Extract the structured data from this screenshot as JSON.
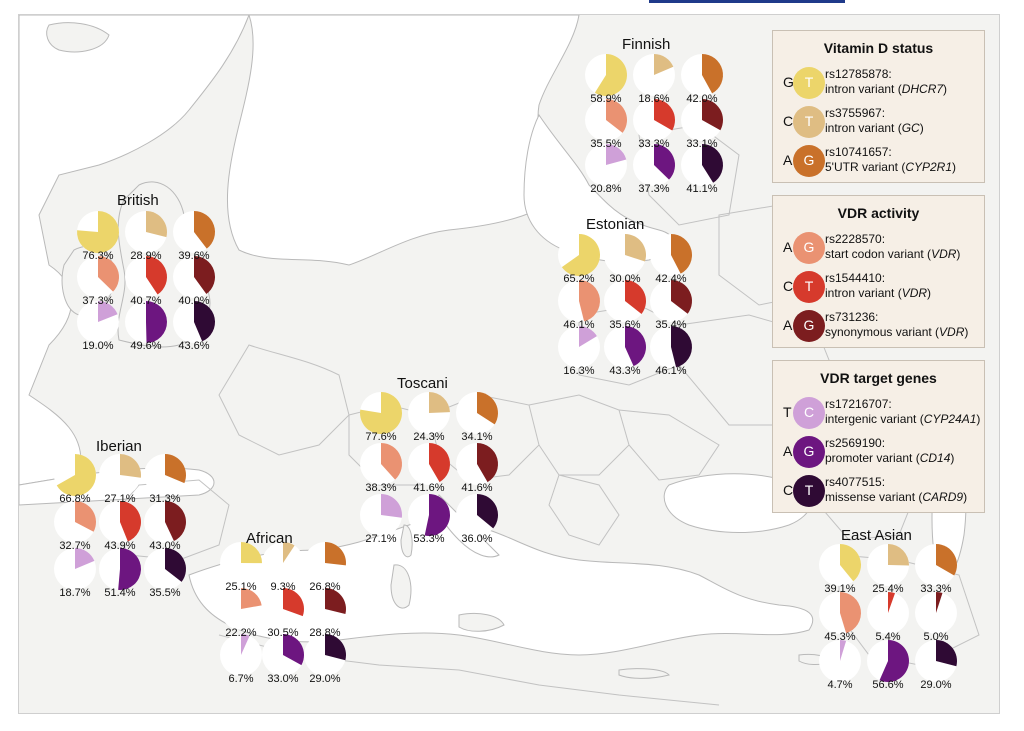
{
  "colors": {
    "rs12785878": "#ecd56a",
    "rs3755967": "#dfbd83",
    "rs10741657": "#c9712a",
    "rs2228570": "#ea9272",
    "rs1544410": "#d63a2c",
    "rs731236": "#7c1d1f",
    "rs17216707": "#cfa0d8",
    "rs2569190": "#6d1680",
    "rs4077515": "#2f0a34",
    "land": "#f3f3f1",
    "border": "#c2c2c2",
    "water": "#ffffff"
  },
  "legends": [
    {
      "title": "Vitamin D status",
      "items": [
        {
          "allele_ref": "G",
          "allele_alt": "T",
          "rs": "rs12785878:",
          "desc": "intron variant (",
          "gene": "DHCR7",
          "tail": ")",
          "color_key": "rs12785878"
        },
        {
          "allele_ref": "C",
          "allele_alt": "T",
          "rs": "rs3755967:",
          "desc": "intron variant (",
          "gene": "GC",
          "tail": ")",
          "color_key": "rs3755967"
        },
        {
          "allele_ref": "A",
          "allele_alt": "G",
          "rs": "rs10741657:",
          "desc": "5'UTR variant (",
          "gene": "CYP2R1",
          "tail": ")",
          "color_key": "rs10741657"
        }
      ]
    },
    {
      "title": "VDR activity",
      "items": [
        {
          "allele_ref": "A",
          "allele_alt": "G",
          "rs": "rs2228570:",
          "desc": "start codon variant (",
          "gene": "VDR",
          "tail": ")",
          "color_key": "rs2228570"
        },
        {
          "allele_ref": "C",
          "allele_alt": "T",
          "rs": "rs1544410:",
          "desc": "intron variant (",
          "gene": "VDR",
          "tail": ")",
          "color_key": "rs1544410"
        },
        {
          "allele_ref": "A",
          "allele_alt": "G",
          "rs": "rs731236:",
          "desc": "synonymous variant (",
          "gene": "VDR",
          "tail": ")",
          "color_key": "rs731236"
        }
      ]
    },
    {
      "title": "VDR target genes",
      "items": [
        {
          "allele_ref": "T",
          "allele_alt": "C",
          "rs": "rs17216707:",
          "desc": "intergenic variant (",
          "gene": "CYP24A1",
          "tail": ")",
          "color_key": "rs17216707"
        },
        {
          "allele_ref": "A",
          "allele_alt": "G",
          "rs": "rs2569190:",
          "desc": "promoter variant (",
          "gene": "CD14",
          "tail": ")",
          "color_key": "rs2569190"
        },
        {
          "allele_ref": "C",
          "allele_alt": "T",
          "rs": "rs4077515:",
          "desc": "missense variant (",
          "gene": "CARD9",
          "tail": ")",
          "color_key": "rs4077515"
        }
      ]
    }
  ],
  "populations": [
    {
      "name": "Finnish",
      "values": [
        58.9,
        18.6,
        42.0,
        35.5,
        33.3,
        33.1,
        20.8,
        37.3,
        41.1
      ]
    },
    {
      "name": "British",
      "values": [
        76.3,
        28.9,
        39.6,
        37.3,
        40.7,
        40.0,
        19.0,
        49.6,
        43.6
      ]
    },
    {
      "name": "Estonian",
      "values": [
        65.2,
        30.0,
        42.4,
        46.1,
        35.6,
        35.4,
        16.3,
        43.3,
        46.1
      ]
    },
    {
      "name": "Toscani",
      "values": [
        77.6,
        24.3,
        34.1,
        38.3,
        41.6,
        41.6,
        27.1,
        53.3,
        36.0
      ]
    },
    {
      "name": "Iberian",
      "values": [
        66.8,
        27.1,
        31.3,
        32.7,
        43.9,
        43.0,
        18.7,
        51.4,
        35.5
      ]
    },
    {
      "name": "African",
      "values": [
        25.1,
        9.3,
        26.8,
        22.2,
        30.5,
        28.8,
        6.7,
        33.0,
        29.0
      ]
    },
    {
      "name": "East Asian",
      "values": [
        39.1,
        25.4,
        33.3,
        45.3,
        5.4,
        5.0,
        4.7,
        56.6,
        29.0
      ]
    }
  ],
  "snp_order": [
    "rs12785878",
    "rs3755967",
    "rs10741657",
    "rs2228570",
    "rs1544410",
    "rs731236",
    "rs17216707",
    "rs2569190",
    "rs4077515"
  ]
}
